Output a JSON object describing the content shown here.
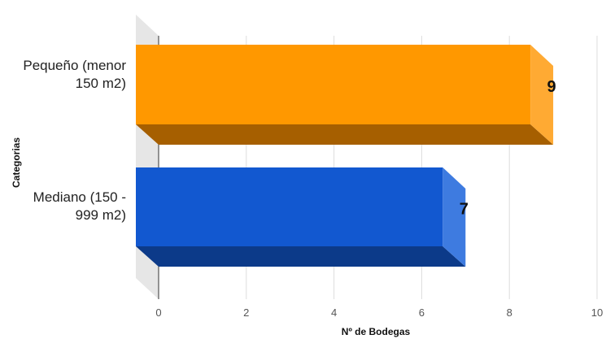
{
  "chart_data": {
    "type": "bar",
    "orientation": "horizontal",
    "style": "3d",
    "categories": [
      "Pequeño (menor 150 m2)",
      "Mediano (150 - 999 m2)"
    ],
    "values": [
      9,
      7
    ],
    "data_labels": [
      "9",
      "7"
    ],
    "xlabel": "Nº de Bodegas",
    "ylabel": "Categorias",
    "xlim": [
      0,
      10
    ],
    "xticks": [
      "0",
      "2",
      "4",
      "6",
      "8",
      "10"
    ],
    "grid": true,
    "legend": "none",
    "colors": {
      "bar1_front": "#ff9800",
      "bar1_top": "#a65f00",
      "bar1_side": "#ffaa33",
      "bar2_front": "#1258d0",
      "bar2_top": "#0c3a89",
      "bar2_side": "#3e7be0",
      "wall": "#e6e6e6",
      "grid": "#dddddd"
    }
  }
}
